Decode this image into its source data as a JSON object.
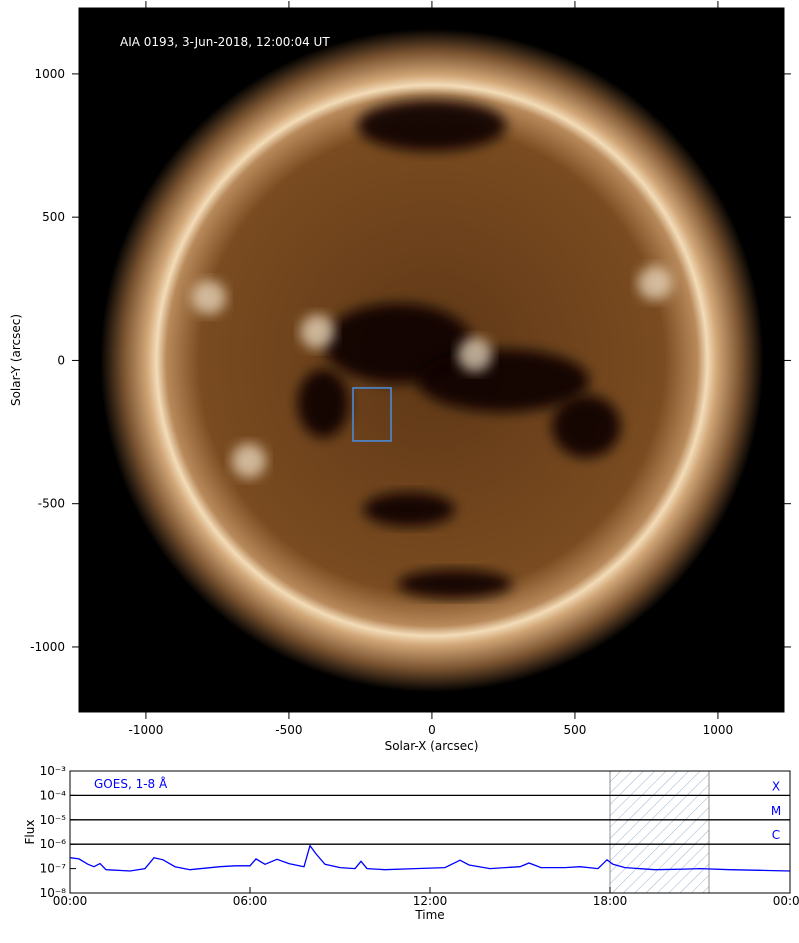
{
  "chart_data": [
    {
      "type": "image",
      "title": "AIA 0193, 3-Jun-2018, 12:00:04 UT",
      "xlabel": "Solar-X (arcsec)",
      "ylabel": "Solar-Y (arcsec)",
      "xlim": [
        -1234,
        1231
      ],
      "ylim": [
        -1227,
        1230
      ],
      "xticks": [
        -1000,
        -500,
        0,
        500,
        1000
      ],
      "yticks": [
        -1000,
        -500,
        0,
        500,
        1000
      ],
      "box": {
        "x": [
          -276,
          -143
        ],
        "y": [
          -281,
          -96
        ],
        "color": "#4a8fe0"
      }
    },
    {
      "type": "line",
      "xlabel": "Time",
      "ylabel": "Flux",
      "xlim": [
        0,
        24
      ],
      "xticks": [
        {
          "value": 0,
          "label": "00:00"
        },
        {
          "value": 6,
          "label": "06:00"
        },
        {
          "value": 12,
          "label": "12:00"
        },
        {
          "value": 18,
          "label": "18:00"
        },
        {
          "value": 24,
          "label": "00:00"
        }
      ],
      "ylim": [
        1e-08,
        0.001
      ],
      "ylog": true,
      "yticks": [
        {
          "value": 1e-08,
          "label": "10⁻⁸"
        },
        {
          "value": 1e-07,
          "label": "10⁻⁷"
        },
        {
          "value": 1e-06,
          "label": "10⁻⁶"
        },
        {
          "value": 1e-05,
          "label": "10⁻⁵"
        },
        {
          "value": 0.0001,
          "label": "10⁻⁴"
        },
        {
          "value": 0.001,
          "label": "10⁻³"
        }
      ],
      "flare_classes": [
        {
          "label": "X",
          "value": 0.0001
        },
        {
          "label": "M",
          "value": 1e-05
        },
        {
          "label": "C",
          "value": 1e-06
        }
      ],
      "shaded_range": [
        18,
        21.3
      ],
      "x": [
        0,
        0.3,
        0.6,
        0.8,
        1.0,
        1.2,
        2.0,
        2.5,
        2.8,
        3.1,
        3.5,
        4.0,
        5.0,
        5.5,
        6.0,
        6.2,
        6.5,
        6.9,
        7.3,
        7.8,
        8.0,
        8.2,
        8.5,
        9.0,
        9.5,
        9.7,
        9.9,
        10.5,
        11.5,
        12.5,
        13.0,
        13.3,
        14.0,
        15.0,
        15.3,
        15.7,
        16.5,
        17.0,
        17.6,
        17.9,
        18.1,
        18.5,
        19.5,
        20.5,
        21.0,
        22.0,
        23.0,
        24.0
      ],
      "series": [
        {
          "name": "GOES, 1-8 Å",
          "color": "#0000ff",
          "values": [
            2.8e-07,
            2.5e-07,
            1.5e-07,
            1.2e-07,
            1.6e-07,
            9e-08,
            8e-08,
            1e-07,
            2.8e-07,
            2.3e-07,
            1.2e-07,
            9e-08,
            1.2e-07,
            1.3e-07,
            1.3e-07,
            2.5e-07,
            1.5e-07,
            2.4e-07,
            1.6e-07,
            1.2e-07,
            8.8e-07,
            4e-07,
            1.5e-07,
            1.1e-07,
            1e-07,
            2e-07,
            1e-07,
            9e-08,
            1e-07,
            1.1e-07,
            2.2e-07,
            1.4e-07,
            1e-07,
            1.2e-07,
            1.7e-07,
            1.1e-07,
            1.1e-07,
            1.2e-07,
            1e-07,
            2.3e-07,
            1.5e-07,
            1.1e-07,
            9e-08,
            9.5e-08,
            1e-07,
            9e-08,
            8.5e-08,
            8e-08
          ]
        }
      ]
    }
  ]
}
